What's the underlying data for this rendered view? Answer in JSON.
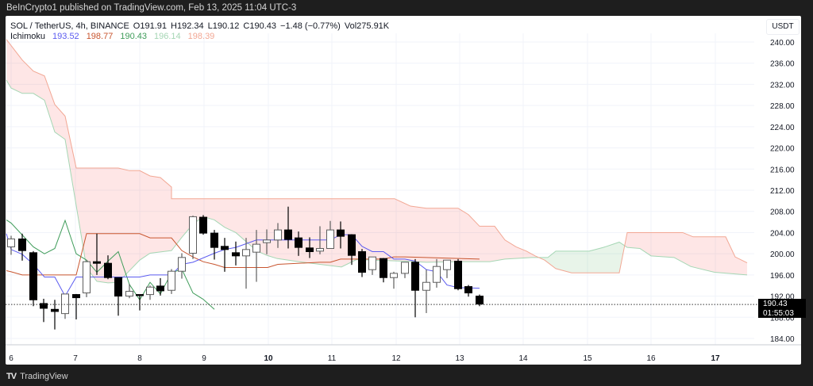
{
  "header": {
    "published": "BeInCrypto1 published on TradingView.com, Feb 13, 2025 11:04 UTC-3"
  },
  "legend": {
    "symbol": "SOL / TetherUS, 4h, BINANCE",
    "open_label": "O",
    "open": "191.91",
    "high_label": "H",
    "high": "192.34",
    "low_label": "L",
    "low": "190.12",
    "close_label": "C",
    "close": "190.43",
    "change": "−1.48 (−0.77%)",
    "volume_label": "Vol",
    "volume": "275.91K",
    "indicator_name": "Ichimoku",
    "indicator_values": [
      {
        "value": "193.52",
        "color": "#5b5bf0"
      },
      {
        "value": "198.77",
        "color": "#c8552f"
      },
      {
        "value": "190.43",
        "color": "#3f9c5a"
      },
      {
        "value": "196.14",
        "color": "#a5d6b4"
      },
      {
        "value": "198.39",
        "color": "#f2a794"
      }
    ]
  },
  "price_axis": {
    "currency": "USDT",
    "ticks": [
      "240.00",
      "236.00",
      "232.00",
      "228.00",
      "224.00",
      "220.00",
      "216.00",
      "212.00",
      "208.00",
      "204.00",
      "200.00",
      "196.00",
      "192.00",
      "188.00",
      "184.00"
    ],
    "current_price": "190.43",
    "countdown": "01:55:03"
  },
  "time_axis": {
    "ticks": [
      {
        "label": "6",
        "bold": false
      },
      {
        "label": "7",
        "bold": false
      },
      {
        "label": "8",
        "bold": false
      },
      {
        "label": "9",
        "bold": false
      },
      {
        "label": "10",
        "bold": true
      },
      {
        "label": "11",
        "bold": false
      },
      {
        "label": "12",
        "bold": false
      },
      {
        "label": "13",
        "bold": false
      },
      {
        "label": "14",
        "bold": false
      },
      {
        "label": "15",
        "bold": false
      },
      {
        "label": "16",
        "bold": false
      },
      {
        "label": "17",
        "bold": true
      }
    ]
  },
  "footer": {
    "brand": "TradingView",
    "logo": "TV"
  },
  "colors": {
    "tenkan": "#5b5bf0",
    "kijun": "#c8552f",
    "chikou": "#3f9c5a",
    "span_a": "#a5d6b4",
    "span_b": "#f2a794",
    "cloud_bear": "rgba(244,67,54,0.12)",
    "cloud_bull": "rgba(76,175,80,0.12)",
    "candle_up": "#ffffff",
    "candle_down": "#000000"
  },
  "chart_data": {
    "type": "candlestick",
    "title": "SOL / TetherUS, 4h, BINANCE",
    "ylabel": "USDT",
    "ylim": [
      182.0,
      241.0
    ],
    "x_day_ticks": [
      6,
      7,
      8,
      9,
      10,
      11,
      12,
      13,
      14,
      15,
      16,
      17
    ],
    "candles": [
      {
        "x": 14,
        "o": 201.3,
        "h": 203.4,
        "l": 199.8,
        "c": 202.8
      },
      {
        "x": 28,
        "o": 202.8,
        "h": 203.8,
        "l": 198.7,
        "c": 200.6
      },
      {
        "x": 42,
        "o": 200.2,
        "h": 200.5,
        "l": 190.1,
        "c": 191.3
      },
      {
        "x": 55,
        "o": 190.6,
        "h": 191.5,
        "l": 187.1,
        "c": 189.7
      },
      {
        "x": 69,
        "o": 189.5,
        "h": 191.3,
        "l": 185.7,
        "c": 189.1
      },
      {
        "x": 82,
        "o": 188.7,
        "h": 191.0,
        "l": 187.7,
        "c": 192.4
      },
      {
        "x": 96,
        "o": 192.3,
        "h": 192.4,
        "l": 187.6,
        "c": 191.7
      },
      {
        "x": 109,
        "o": 192.6,
        "h": 198.8,
        "l": 191.8,
        "c": 198.5
      },
      {
        "x": 122,
        "o": 198.5,
        "h": 203.8,
        "l": 196.0,
        "c": 198.2
      },
      {
        "x": 136,
        "o": 198.2,
        "h": 199.7,
        "l": 195.2,
        "c": 195.5
      },
      {
        "x": 149,
        "o": 195.5,
        "h": 195.5,
        "l": 188.3,
        "c": 192.0
      },
      {
        "x": 163,
        "o": 192.0,
        "h": 194.3,
        "l": 191.6,
        "c": 192.9
      },
      {
        "x": 176,
        "o": 192.3,
        "h": 192.3,
        "l": 189.3,
        "c": 192.1
      },
      {
        "x": 189,
        "o": 192.3,
        "h": 194.0,
        "l": 191.3,
        "c": 193.7
      },
      {
        "x": 202,
        "o": 193.9,
        "h": 195.4,
        "l": 192.1,
        "c": 193.0
      },
      {
        "x": 216,
        "o": 193.1,
        "h": 197.1,
        "l": 192.4,
        "c": 196.7
      },
      {
        "x": 229,
        "o": 196.7,
        "h": 200.1,
        "l": 195.3,
        "c": 199.3
      },
      {
        "x": 243,
        "o": 200.1,
        "h": 207.2,
        "l": 199.0,
        "c": 207.0
      },
      {
        "x": 256,
        "o": 206.9,
        "h": 207.3,
        "l": 203.6,
        "c": 203.9
      },
      {
        "x": 270,
        "o": 203.9,
        "h": 204.5,
        "l": 198.9,
        "c": 201.2
      },
      {
        "x": 283,
        "o": 201.4,
        "h": 203.0,
        "l": 196.6,
        "c": 200.8
      },
      {
        "x": 297,
        "o": 200.2,
        "h": 202.3,
        "l": 197.8,
        "c": 199.6
      },
      {
        "x": 310,
        "o": 199.6,
        "h": 203.0,
        "l": 193.4,
        "c": 200.8
      },
      {
        "x": 323,
        "o": 200.3,
        "h": 204.5,
        "l": 194.7,
        "c": 201.8
      },
      {
        "x": 336,
        "o": 202.1,
        "h": 204.6,
        "l": 199.9,
        "c": 202.6
      },
      {
        "x": 350,
        "o": 202.6,
        "h": 205.8,
        "l": 201.1,
        "c": 204.5
      },
      {
        "x": 363,
        "o": 204.5,
        "h": 208.9,
        "l": 201.0,
        "c": 202.7
      },
      {
        "x": 376,
        "o": 203.0,
        "h": 204.2,
        "l": 199.6,
        "c": 201.2
      },
      {
        "x": 390,
        "o": 201.1,
        "h": 203.1,
        "l": 199.2,
        "c": 200.4
      },
      {
        "x": 403,
        "o": 200.5,
        "h": 205.2,
        "l": 199.9,
        "c": 201.0
      },
      {
        "x": 416,
        "o": 201.0,
        "h": 206.2,
        "l": 201.0,
        "c": 204.5
      },
      {
        "x": 429,
        "o": 204.5,
        "h": 206.1,
        "l": 201.0,
        "c": 203.3
      },
      {
        "x": 443,
        "o": 203.6,
        "h": 203.7,
        "l": 197.9,
        "c": 199.7
      },
      {
        "x": 456,
        "o": 200.4,
        "h": 200.9,
        "l": 195.6,
        "c": 196.5
      },
      {
        "x": 469,
        "o": 197.0,
        "h": 199.3,
        "l": 196.0,
        "c": 199.4
      },
      {
        "x": 483,
        "o": 199.1,
        "h": 199.2,
        "l": 194.6,
        "c": 195.5
      },
      {
        "x": 496,
        "o": 195.5,
        "h": 196.6,
        "l": 193.4,
        "c": 196.3
      },
      {
        "x": 510,
        "o": 196.3,
        "h": 198.2,
        "l": 195.4,
        "c": 198.4
      },
      {
        "x": 523,
        "o": 198.4,
        "h": 199.0,
        "l": 188.0,
        "c": 193.1
      },
      {
        "x": 537,
        "o": 193.1,
        "h": 197.0,
        "l": 188.8,
        "c": 194.6
      },
      {
        "x": 550,
        "o": 194.6,
        "h": 199.0,
        "l": 193.6,
        "c": 197.6
      },
      {
        "x": 563,
        "o": 197.0,
        "h": 198.7,
        "l": 195.4,
        "c": 198.8
      },
      {
        "x": 577,
        "o": 198.6,
        "h": 199.0,
        "l": 193.1,
        "c": 193.4
      },
      {
        "x": 590,
        "o": 193.8,
        "h": 194.1,
        "l": 191.9,
        "c": 192.6
      },
      {
        "x": 604,
        "o": 192.0,
        "h": 192.3,
        "l": 190.1,
        "c": 190.5
      }
    ],
    "tenkan_sen": [
      [
        8,
        203.8
      ],
      [
        14,
        200.8
      ],
      [
        28,
        199.9
      ],
      [
        42,
        198.0
      ],
      [
        56,
        195.6
      ],
      [
        69,
        195.6
      ],
      [
        82,
        192.0
      ],
      [
        96,
        195.6
      ],
      [
        136,
        195.6
      ],
      [
        176,
        195.6
      ],
      [
        189,
        196.0
      ],
      [
        216,
        196.0
      ],
      [
        229,
        198.0
      ],
      [
        243,
        198.4
      ],
      [
        270,
        200.1
      ],
      [
        283,
        200.8
      ],
      [
        297,
        201.2
      ],
      [
        310,
        201.9
      ],
      [
        323,
        202.6
      ],
      [
        350,
        202.6
      ],
      [
        363,
        202.6
      ],
      [
        390,
        202.6
      ],
      [
        403,
        202.6
      ],
      [
        416,
        202.6
      ],
      [
        429,
        203.6
      ],
      [
        443,
        203.6
      ],
      [
        456,
        201.4
      ],
      [
        469,
        200.4
      ],
      [
        483,
        200.4
      ],
      [
        496,
        199.0
      ],
      [
        510,
        199.0
      ],
      [
        523,
        198.6
      ],
      [
        537,
        197.0
      ],
      [
        550,
        196.6
      ],
      [
        563,
        194.1
      ],
      [
        577,
        193.6
      ],
      [
        604,
        193.5
      ]
    ],
    "kijun_sen": [
      [
        8,
        196.8
      ],
      [
        14,
        196.6
      ],
      [
        28,
        196.0
      ],
      [
        42,
        196.0
      ],
      [
        96,
        196.0
      ],
      [
        109,
        203.8
      ],
      [
        122,
        203.8
      ],
      [
        176,
        203.8
      ],
      [
        189,
        203.0
      ],
      [
        216,
        203.0
      ],
      [
        229,
        200.6
      ],
      [
        243,
        199.4
      ],
      [
        256,
        198.5
      ],
      [
        270,
        198.0
      ],
      [
        283,
        197.4
      ],
      [
        297,
        197.4
      ],
      [
        337,
        197.4
      ],
      [
        350,
        198.0
      ],
      [
        403,
        198.4
      ],
      [
        416,
        198.4
      ],
      [
        429,
        199.0
      ],
      [
        443,
        199.0
      ],
      [
        483,
        199.0
      ],
      [
        496,
        199.4
      ],
      [
        510,
        199.4
      ],
      [
        604,
        199.0
      ]
    ],
    "chikou_span": [
      [
        8,
        206.4
      ],
      [
        14,
        205.8
      ],
      [
        42,
        201.3
      ],
      [
        56,
        200.0
      ],
      [
        69,
        201.0
      ],
      [
        82,
        206.3
      ],
      [
        96,
        200.0
      ],
      [
        109,
        198.8
      ],
      [
        122,
        196.5
      ],
      [
        136,
        198.6
      ],
      [
        149,
        200.4
      ],
      [
        163,
        194.2
      ],
      [
        176,
        191.3
      ],
      [
        189,
        194.6
      ],
      [
        202,
        192.4
      ],
      [
        216,
        196.4
      ],
      [
        229,
        197.1
      ],
      [
        243,
        192.6
      ],
      [
        256,
        191.4
      ],
      [
        270,
        189.5
      ]
    ],
    "senkou_a": [
      [
        8,
        232.8
      ],
      [
        14,
        231.3
      ],
      [
        28,
        230.3
      ],
      [
        42,
        230.3
      ],
      [
        56,
        229.0
      ],
      [
        69,
        223.0
      ],
      [
        82,
        221.6
      ],
      [
        96,
        209.1
      ],
      [
        109,
        197.4
      ],
      [
        122,
        194.8
      ],
      [
        136,
        194.5
      ],
      [
        149,
        194.6
      ],
      [
        163,
        196.8
      ],
      [
        176,
        198.8
      ],
      [
        189,
        200.1
      ],
      [
        216,
        200.6
      ],
      [
        229,
        203.1
      ],
      [
        243,
        205.6
      ],
      [
        256,
        207.0
      ],
      [
        270,
        206.4
      ],
      [
        283,
        205.0
      ],
      [
        297,
        204.0
      ],
      [
        323,
        200.6
      ],
      [
        336,
        199.7
      ],
      [
        349,
        199.1
      ],
      [
        376,
        198.5
      ],
      [
        403,
        198.0
      ],
      [
        430,
        197.5
      ],
      [
        449,
        198.9
      ],
      [
        510,
        198.6
      ],
      [
        537,
        198.4
      ],
      [
        577,
        198.5
      ],
      [
        617,
        198.5
      ],
      [
        636,
        199.0
      ],
      [
        670,
        199.3
      ],
      [
        690,
        199.3
      ],
      [
        700,
        200.5
      ],
      [
        742,
        200.5
      ],
      [
        760,
        201.2
      ],
      [
        780,
        202.2
      ],
      [
        790,
        201.2
      ],
      [
        806,
        201.0
      ],
      [
        820,
        199.6
      ],
      [
        849,
        199.3
      ],
      [
        870,
        197.6
      ],
      [
        900,
        196.5
      ],
      [
        941,
        196.0
      ]
    ],
    "senkou_b": [
      [
        8,
        240.5
      ],
      [
        28,
        236.6
      ],
      [
        42,
        234.5
      ],
      [
        56,
        233.6
      ],
      [
        69,
        228.2
      ],
      [
        82,
        226.0
      ],
      [
        96,
        216.2
      ],
      [
        149,
        216.2
      ],
      [
        163,
        215.7
      ],
      [
        176,
        215.7
      ],
      [
        189,
        214.7
      ],
      [
        202,
        214.4
      ],
      [
        216,
        212.6
      ],
      [
        216,
        210.4
      ],
      [
        257,
        210.4
      ],
      [
        497,
        210.4
      ],
      [
        517,
        209.0
      ],
      [
        537,
        208.6
      ],
      [
        577,
        208.6
      ],
      [
        590,
        207.4
      ],
      [
        604,
        205.2
      ],
      [
        623,
        205.2
      ],
      [
        636,
        202.6
      ],
      [
        650,
        201.3
      ],
      [
        663,
        200.5
      ],
      [
        674,
        199.6
      ],
      [
        686,
        198.8
      ],
      [
        700,
        197.2
      ],
      [
        720,
        196.4
      ],
      [
        780,
        196.4
      ],
      [
        790,
        204.0
      ],
      [
        860,
        204.0
      ],
      [
        873,
        203.2
      ],
      [
        914,
        203.2
      ],
      [
        926,
        199.4
      ],
      [
        941,
        198.3
      ]
    ]
  }
}
